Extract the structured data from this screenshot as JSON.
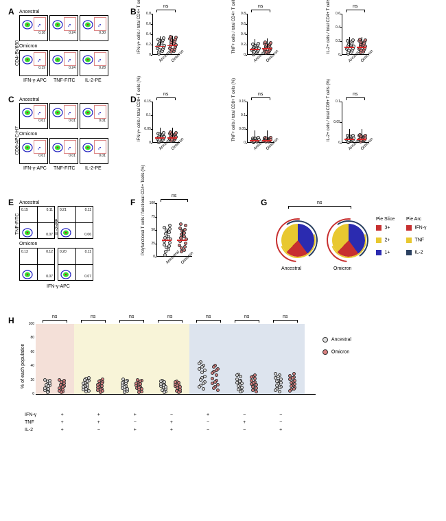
{
  "panelA": {
    "label": "A",
    "rows": [
      {
        "name": "Ancestral",
        "values": [
          "0.18",
          "0.24",
          "0.30"
        ]
      },
      {
        "name": "Omicron",
        "values": [
          "0.19",
          "0.24",
          "0.28"
        ]
      }
    ],
    "y_axis": "CD4-BV650",
    "x_axes": [
      "IFN-γ-APC",
      "TNF-FITC",
      "IL-2-PE"
    ],
    "gate_color": "#d88888",
    "cluster_color": "#2020c0"
  },
  "panelB": {
    "label": "B",
    "plots": [
      {
        "ylabel": "IFN-γ+ cells / total CD4+ T cells (%)",
        "ymax": 0.8,
        "ticks": [
          0,
          0.2,
          0.4,
          0.6,
          0.8
        ],
        "median_a": 0.18,
        "median_o": 0.19,
        "ns": "ns"
      },
      {
        "ylabel": "TNF+ cells / total CD4+ T cells (%)",
        "ymax": 0.8,
        "ticks": [
          0,
          0.2,
          0.4,
          0.6,
          0.8
        ],
        "median_a": 0.12,
        "median_o": 0.13,
        "ns": "ns"
      },
      {
        "ylabel": "IL-2+ cells / total CD4+ T cells (%)",
        "ymax": 0.6,
        "ticks": [
          0,
          0.2,
          0.4,
          0.6
        ],
        "median_a": 0.12,
        "median_o": 0.12,
        "ns": "ns"
      }
    ],
    "categories": [
      "Ancestral",
      "Omicron"
    ],
    "colors": {
      "ancestral": "#e0e0e0",
      "omicron": "#d88080",
      "median": "#d62728"
    }
  },
  "panelC": {
    "label": "C",
    "rows": [
      {
        "name": "Ancestral",
        "values": [
          "0.01",
          "0.01",
          "0.01"
        ]
      },
      {
        "name": "Omicron",
        "values": [
          "0.01",
          "0.01",
          "0.01"
        ]
      }
    ],
    "y_axis": "CD8-APC-H7",
    "x_axes": [
      "IFN-γ-APC",
      "TNF-FITC",
      "IL-2-PE"
    ]
  },
  "panelD": {
    "label": "D",
    "plots": [
      {
        "ylabel": "IFN-γ+ cells / total CD8+ T cells (%)",
        "ymax": 0.15,
        "ticks": [
          0,
          0.05,
          0.1,
          0.15
        ],
        "median_a": 0.02,
        "median_o": 0.02,
        "ns": "ns"
      },
      {
        "ylabel": "TNF+ cells / total CD8+ T cells (%)",
        "ymax": 0.15,
        "ticks": [
          0,
          0.05,
          0.1,
          0.15
        ],
        "median_a": 0.01,
        "median_o": 0.01,
        "ns": "ns"
      },
      {
        "ylabel": "IL-2+ cells / total CD8+ T cells (%)",
        "ymax": 0.1,
        "ticks": [
          0,
          0.05,
          0.1
        ],
        "median_a": 0.01,
        "median_o": 0.01,
        "ns": "ns"
      }
    ],
    "categories": [
      "Ancestral",
      "Omicron"
    ]
  },
  "panelE": {
    "label": "E",
    "rows": [
      {
        "name": "Ancestral",
        "plots": [
          {
            "tl": "0.15",
            "tr": "0.11",
            "bl": "",
            "br": "0.07"
          },
          {
            "tl": "0.21",
            "tr": "0.11",
            "bl": "",
            "br": "0.06"
          }
        ]
      },
      {
        "name": "Omicron",
        "plots": [
          {
            "tl": "0.13",
            "tr": "0.12",
            "bl": "",
            "br": "0.07"
          },
          {
            "tl": "0.20",
            "tr": "0.11",
            "bl": "",
            "br": "0.07"
          }
        ]
      }
    ],
    "y_axes": [
      "TNF-FITC",
      "IL-2-PE"
    ],
    "x_axis": "IFN-γ-APC"
  },
  "panelF": {
    "label": "F",
    "ylabel": "Polyfunctional T cells / functional CD4+ Tcells (%)",
    "ymax": 100,
    "ticks": [
      0,
      25,
      50,
      75,
      100
    ],
    "median_a": 32,
    "median_o": 32,
    "ns": "ns",
    "categories": [
      "Ancestral",
      "Omicron"
    ]
  },
  "panelG": {
    "label": "G",
    "ns": "ns",
    "pies": [
      {
        "name": "Ancestral",
        "slices": [
          {
            "color": "#2b2bb0",
            "pct": 40
          },
          {
            "color": "#c73030",
            "pct": 22
          },
          {
            "color": "#e8c830",
            "pct": 38
          }
        ]
      },
      {
        "name": "Omicron",
        "slices": [
          {
            "color": "#2b2bb0",
            "pct": 40
          },
          {
            "color": "#c73030",
            "pct": 22
          },
          {
            "color": "#e8c830",
            "pct": 38
          }
        ]
      }
    ],
    "slice_legend_title": "Pie Slice",
    "slice_legend": [
      {
        "label": "3+",
        "color": "#c73030"
      },
      {
        "label": "2+",
        "color": "#e8c830"
      },
      {
        "label": "1+",
        "color": "#2b2bb0"
      }
    ],
    "arc_legend_title": "Pie Arc",
    "arc_legend": [
      {
        "label": "IFN-γ",
        "color": "#c73030"
      },
      {
        "label": "TNF",
        "color": "#e8c830"
      },
      {
        "label": "IL-2",
        "color": "#2a4060"
      }
    ],
    "arc_colors": {
      "ifn": "#c73030",
      "tnf": "#e8c830",
      "il2": "#2a4060"
    }
  },
  "panelH": {
    "label": "H",
    "ylabel": "% of each population",
    "ymax": 100,
    "ticks": [
      0,
      20,
      40,
      60,
      80,
      100
    ],
    "ns": "ns",
    "combos": [
      {
        "ifn": "+",
        "tnf": "+",
        "il2": "+",
        "bg": "#f4e0d8",
        "ns": "ns",
        "median_a": 10,
        "median_o": 10
      },
      {
        "ifn": "+",
        "tnf": "+",
        "il2": "−",
        "bg": "#f8f4d8",
        "ns": "ns",
        "median_a": 12,
        "median_o": 11
      },
      {
        "ifn": "+",
        "tnf": "−",
        "il2": "+",
        "bg": "#f8f4d8",
        "ns": "ns",
        "median_a": 10,
        "median_o": 10
      },
      {
        "ifn": "−",
        "tnf": "+",
        "il2": "+",
        "bg": "#f8f4d8",
        "ns": "ns",
        "median_a": 9,
        "median_o": 9
      },
      {
        "ifn": "+",
        "tnf": "−",
        "il2": "−",
        "bg": "#dde4ee",
        "ns": "ns",
        "median_a": 22,
        "median_o": 20
      },
      {
        "ifn": "−",
        "tnf": "+",
        "il2": "−",
        "bg": "#dde4ee",
        "ns": "ns",
        "median_a": 14,
        "median_o": 13
      },
      {
        "ifn": "−",
        "tnf": "−",
        "il2": "+",
        "bg": "#dde4ee",
        "ns": "ns",
        "median_a": 15,
        "median_o": 14
      }
    ],
    "cytokines": [
      "IFN-γ",
      "TNF",
      "IL-2"
    ],
    "legend": [
      {
        "label": "Ancestral",
        "color": "#e0e0e0"
      },
      {
        "label": "Omicron",
        "color": "#d88080"
      }
    ]
  },
  "flow_cluster_svg_color": "#2020c0"
}
